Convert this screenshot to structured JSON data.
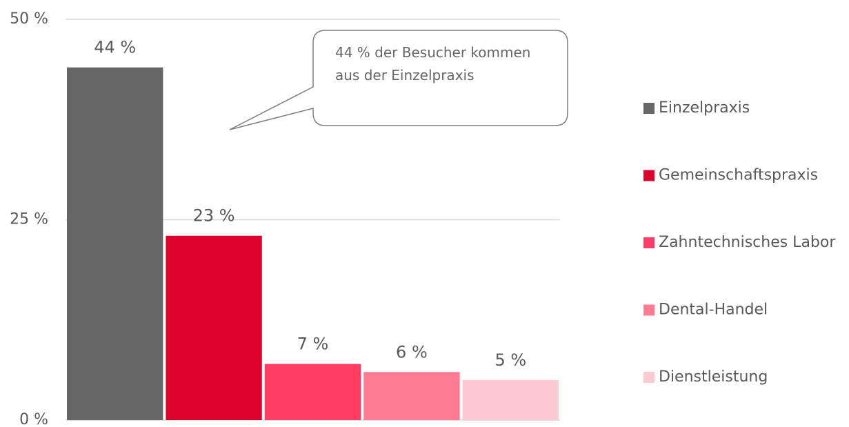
{
  "chart_data": {
    "type": "bar",
    "series": [
      {
        "name": "Einzelpraxis",
        "color": "#666666",
        "values": [
          44
        ],
        "value_labels": [
          "44 %"
        ]
      },
      {
        "name": "Gemeinschaftspraxis",
        "color": "#dc002d",
        "values": [
          23
        ],
        "value_labels": [
          "23 %"
        ]
      },
      {
        "name": "Zahntechnisches Labor",
        "color": "#fe3b62",
        "values": [
          7
        ],
        "value_labels": [
          "7 %"
        ]
      },
      {
        "name": "Dental-Handel",
        "color": "#ff7b93",
        "values": [
          6
        ],
        "value_labels": [
          "6 %"
        ]
      },
      {
        "name": "Dienstleistung",
        "color": "#fdc9d2",
        "values": [
          5
        ],
        "value_labels": [
          "5 %"
        ]
      }
    ],
    "ylim": [
      0,
      50
    ],
    "yticks": [
      {
        "value": 0,
        "label": "0 %"
      },
      {
        "value": 25,
        "label": "25 %"
      },
      {
        "value": 50,
        "label": "50 %"
      }
    ],
    "grid": true,
    "legend": "right",
    "annotation": "44 % der Besucher kommen aus der Einzelpraxis"
  }
}
